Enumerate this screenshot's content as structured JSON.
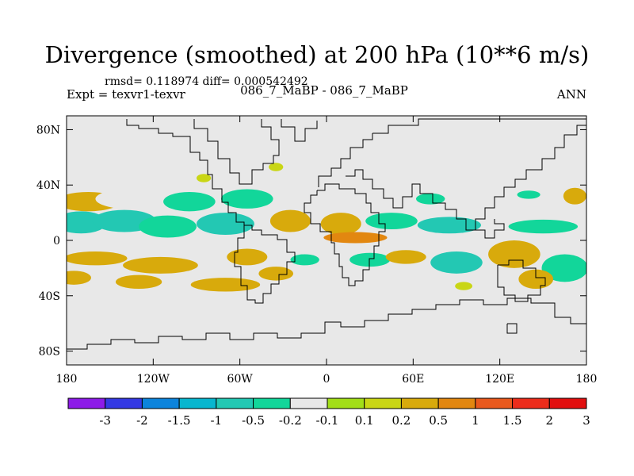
{
  "chart_data": {
    "type": "heatmap",
    "title": "Divergence (smoothed) at 200 hPa (10**6 m/s)",
    "stats": "rmsd= 0.118974 diff= 0.000542492",
    "left_label": "Expt = texvr1-texvr",
    "center_label": "086_7_MaBP - 086_7_MaBP",
    "right_label": "ANN",
    "x_range": [
      -180,
      180
    ],
    "y_range": [
      -90,
      90
    ],
    "x_ticks": [
      {
        "value": -180,
        "label": "180"
      },
      {
        "value": -120,
        "label": "120W"
      },
      {
        "value": -60,
        "label": "60W"
      },
      {
        "value": 0,
        "label": "0"
      },
      {
        "value": 60,
        "label": "60E"
      },
      {
        "value": 120,
        "label": "120E"
      },
      {
        "value": 180,
        "label": "180"
      }
    ],
    "y_ticks": [
      {
        "value": 80,
        "label": "80N"
      },
      {
        "value": 40,
        "label": "40N"
      },
      {
        "value": 0,
        "label": "0"
      },
      {
        "value": -40,
        "label": "40S"
      },
      {
        "value": -80,
        "label": "80S"
      }
    ],
    "colorbar": {
      "colors": [
        "#8d1be8",
        "#3439e3",
        "#0c84dc",
        "#08b6cf",
        "#23c8b3",
        "#12d69a",
        "#e8e8e8",
        "#a2de18",
        "#c9d615",
        "#d8aa0c",
        "#e28710",
        "#e9591d",
        "#ec2c1b",
        "#e20f0f"
      ],
      "labels": [
        "-3",
        "-2",
        "-1.5",
        "-1",
        "-0.5",
        "-0.2",
        "-0.1",
        "0.1",
        "0.2",
        "0.5",
        "1",
        "1.5",
        "2",
        "3"
      ]
    },
    "regions": [
      {
        "lon": -165,
        "lat": 28,
        "rlon": 22,
        "rlat": 7,
        "value": 0.3
      },
      {
        "lon": -130,
        "lat": 30,
        "rlon": 30,
        "rlat": 8,
        "value": -0.15
      },
      {
        "lon": -95,
        "lat": 28,
        "rlon": 18,
        "rlat": 7,
        "value": -0.3
      },
      {
        "lon": -55,
        "lat": 30,
        "rlon": 18,
        "rlat": 7,
        "value": -0.4
      },
      {
        "lon": -170,
        "lat": 13,
        "rlon": 18,
        "rlat": 8,
        "value": -0.6
      },
      {
        "lon": -140,
        "lat": 14,
        "rlon": 22,
        "rlat": 8,
        "value": -0.6
      },
      {
        "lon": -110,
        "lat": 10,
        "rlon": 20,
        "rlat": 8,
        "value": -0.3
      },
      {
        "lon": -70,
        "lat": 12,
        "rlon": 20,
        "rlat": 8,
        "value": -0.5
      },
      {
        "lon": -25,
        "lat": 14,
        "rlon": 14,
        "rlat": 8,
        "value": 0.3
      },
      {
        "lon": 10,
        "lat": 12,
        "rlon": 14,
        "rlat": 8,
        "value": 0.25
      },
      {
        "lon": 45,
        "lat": 14,
        "rlon": 18,
        "rlat": 6,
        "value": -0.3
      },
      {
        "lon": 85,
        "lat": 11,
        "rlon": 22,
        "rlat": 6,
        "value": -0.5
      },
      {
        "lon": 150,
        "lat": 10,
        "rlon": 24,
        "rlat": 5,
        "value": -0.2
      },
      {
        "lon": 72,
        "lat": 30,
        "rlon": 10,
        "rlat": 4,
        "value": -0.2
      },
      {
        "lon": 140,
        "lat": 33,
        "rlon": 8,
        "rlat": 3,
        "value": -0.2
      },
      {
        "lon": 172,
        "lat": 32,
        "rlon": 8,
        "rlat": 6,
        "value": 0.3
      },
      {
        "lon": -35,
        "lat": 53,
        "rlon": 5,
        "rlat": 3,
        "value": 0.2
      },
      {
        "lon": -85,
        "lat": 45,
        "rlon": 5,
        "rlat": 3,
        "value": 0.2
      },
      {
        "lon": 20,
        "lat": 2,
        "rlon": 22,
        "rlat": 4,
        "value": 0.6
      },
      {
        "lon": -160,
        "lat": -13,
        "rlon": 22,
        "rlat": 5,
        "value": 0.3
      },
      {
        "lon": -115,
        "lat": -18,
        "rlon": 26,
        "rlat": 6,
        "value": 0.25
      },
      {
        "lon": -55,
        "lat": -12,
        "rlon": 14,
        "rlat": 6,
        "value": 0.3
      },
      {
        "lon": -35,
        "lat": -24,
        "rlon": 12,
        "rlat": 5,
        "value": 0.3
      },
      {
        "lon": -15,
        "lat": -14,
        "rlon": 10,
        "rlat": 4,
        "value": -0.3
      },
      {
        "lon": 30,
        "lat": -14,
        "rlon": 14,
        "rlat": 5,
        "value": -0.3
      },
      {
        "lon": 55,
        "lat": -12,
        "rlon": 14,
        "rlat": 5,
        "value": 0.3
      },
      {
        "lon": 90,
        "lat": -16,
        "rlon": 18,
        "rlat": 8,
        "value": -0.5
      },
      {
        "lon": 130,
        "lat": -10,
        "rlon": 18,
        "rlat": 10,
        "value": 0.3
      },
      {
        "lon": 165,
        "lat": -20,
        "rlon": 16,
        "rlat": 10,
        "value": -0.4
      },
      {
        "lon": -175,
        "lat": -27,
        "rlon": 12,
        "rlat": 5,
        "value": 0.3
      },
      {
        "lon": -130,
        "lat": -30,
        "rlon": 16,
        "rlat": 5,
        "value": 0.25
      },
      {
        "lon": -70,
        "lat": -32,
        "rlon": 24,
        "rlat": 5,
        "value": 0.3
      },
      {
        "lon": 95,
        "lat": -33,
        "rlon": 6,
        "rlat": 3,
        "value": 0.2
      },
      {
        "lon": 145,
        "lat": -28,
        "rlon": 12,
        "rlat": 7,
        "value": 0.3
      }
    ]
  }
}
